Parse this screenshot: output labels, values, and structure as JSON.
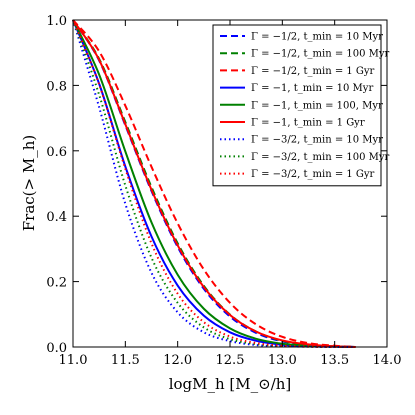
{
  "chart_data": {
    "type": "line",
    "title": "",
    "xlabel": "logM_h [M_⊙/h]",
    "ylabel": "Frac(> M_h)",
    "xlim": [
      11.0,
      14.0
    ],
    "ylim": [
      0.0,
      1.0
    ],
    "x_ticks": [
      "11.0",
      "11.5",
      "12.0",
      "12.5",
      "13.0",
      "13.5",
      "14.0"
    ],
    "y_ticks": [
      "0.0",
      "0.2",
      "0.4",
      "0.6",
      "0.8",
      "1.0"
    ],
    "grid": false,
    "legend_position": "top-right",
    "x": [
      11.0,
      11.25,
      11.5,
      11.75,
      12.0,
      12.25,
      12.5,
      12.75,
      13.0,
      13.25,
      13.5,
      13.7
    ],
    "series": [
      {
        "name": "Γ = −1/2, t_min = 10 Myr",
        "color": "#0000ff",
        "style": "dashed",
        "values": [
          1.0,
          0.876,
          0.678,
          0.477,
          0.306,
          0.178,
          0.093,
          0.043,
          0.017,
          0.006,
          0.002,
          0.0
        ]
      },
      {
        "name": "Γ = −1/2, t_min = 100 Myr",
        "color": "#008000",
        "style": "dashed",
        "values": [
          1.0,
          0.881,
          0.688,
          0.489,
          0.317,
          0.187,
          0.099,
          0.047,
          0.019,
          0.007,
          0.002,
          0.0
        ]
      },
      {
        "name": "Γ = −1/2, t_min = 1 Gyr",
        "color": "#ff0000",
        "style": "dashed",
        "values": [
          1.0,
          0.904,
          0.738,
          0.551,
          0.378,
          0.237,
          0.135,
          0.069,
          0.031,
          0.012,
          0.004,
          0.0
        ]
      },
      {
        "name": "Γ = −1, t_min = 10 Myr",
        "color": "#0000ff",
        "style": "solid",
        "values": [
          1.0,
          0.805,
          0.552,
          0.338,
          0.188,
          0.096,
          0.045,
          0.019,
          0.007,
          0.002,
          0.001,
          0.0
        ]
      },
      {
        "name": "Γ = −1, t_min = 100, Myr",
        "color": "#008000",
        "style": "solid",
        "values": [
          1.0,
          0.833,
          0.598,
          0.381,
          0.221,
          0.117,
          0.057,
          0.025,
          0.01,
          0.004,
          0.001,
          0.0
        ]
      },
      {
        "name": "Γ = −1, t_min = 1 Gyr",
        "color": "#ff0000",
        "style": "solid",
        "values": [
          1.0,
          0.878,
          0.681,
          0.481,
          0.311,
          0.183,
          0.098,
          0.047,
          0.02,
          0.008,
          0.002,
          0.0
        ]
      },
      {
        "name": "Γ = −3/2, t_min = 10 Myr",
        "color": "#0000ff",
        "style": "dotted",
        "values": [
          1.0,
          0.733,
          0.438,
          0.227,
          0.106,
          0.045,
          0.018,
          0.006,
          0.002,
          0.001,
          0.0,
          0.0
        ]
      },
      {
        "name": "Γ = −3/2, t_min = 100 Myr",
        "color": "#008000",
        "style": "dotted",
        "values": [
          1.0,
          0.771,
          0.494,
          0.273,
          0.135,
          0.06,
          0.024,
          0.009,
          0.003,
          0.001,
          0.0,
          0.0
        ]
      },
      {
        "name": "Γ = −3/2, t_min = 1 Gyr",
        "color": "#ff0000",
        "style": "dotted",
        "values": [
          1.0,
          0.803,
          0.545,
          0.317,
          0.163,
          0.076,
          0.032,
          0.012,
          0.004,
          0.001,
          0.0,
          0.0
        ]
      }
    ]
  }
}
